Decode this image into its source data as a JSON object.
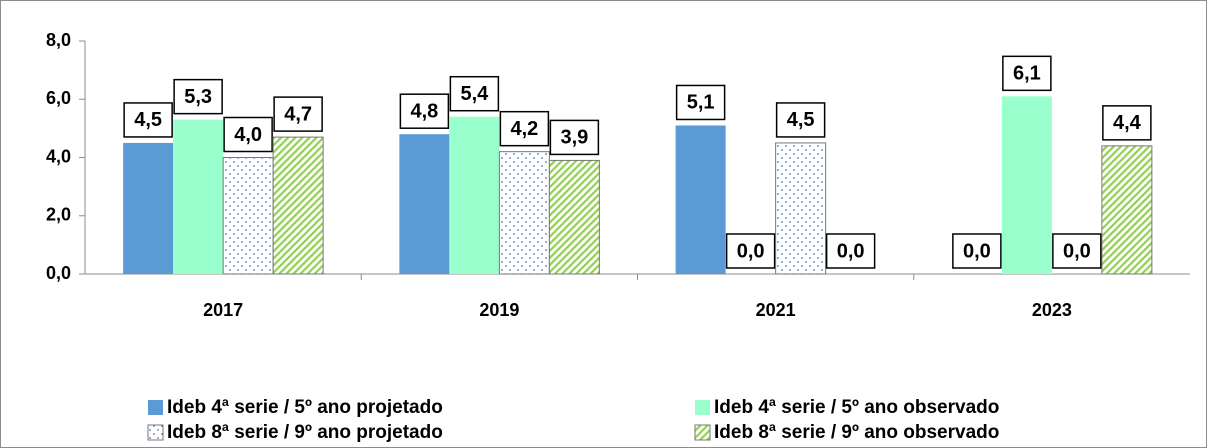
{
  "chart_data": {
    "type": "bar",
    "categories": [
      "2017",
      "2019",
      "2021",
      "2023"
    ],
    "series": [
      {
        "name": "Ideb 4ª serie / 5º ano projetado",
        "color": "#5b9bd5",
        "pattern": "solid",
        "values": [
          4.5,
          4.8,
          5.1,
          0.0
        ],
        "value_labels": [
          "4,5",
          "4,8",
          "5,1",
          "0,0"
        ]
      },
      {
        "name": "Ideb 4ª serie / 5º ano observado",
        "color": "#99ffcc",
        "pattern": "solid",
        "values": [
          5.3,
          5.4,
          0.0,
          6.1
        ],
        "value_labels": [
          "5,3",
          "5,4",
          "0,0",
          "6,1"
        ]
      },
      {
        "name": "Ideb 8ª serie / 9º ano projetado",
        "color": "#4472c4",
        "pattern": "dots",
        "values": [
          4.0,
          4.2,
          4.5,
          0.0
        ],
        "value_labels": [
          "4,0",
          "4,2",
          "4,5",
          "0,0"
        ]
      },
      {
        "name": "Ideb 8ª serie / 9º ano observado",
        "color": "#92d050",
        "pattern": "hatch",
        "values": [
          4.7,
          3.9,
          0.0,
          4.4
        ],
        "value_labels": [
          "4,7",
          "3,9",
          "0,0",
          "4,4"
        ]
      }
    ],
    "ylim": [
      0,
      8
    ],
    "yticks": [
      {
        "value": 0,
        "label": "0,0"
      },
      {
        "value": 2,
        "label": "2,0"
      },
      {
        "value": 4,
        "label": "4,0"
      },
      {
        "value": 6,
        "label": "6,0"
      },
      {
        "value": 8,
        "label": "8,0"
      }
    ],
    "legend": "bottom"
  }
}
